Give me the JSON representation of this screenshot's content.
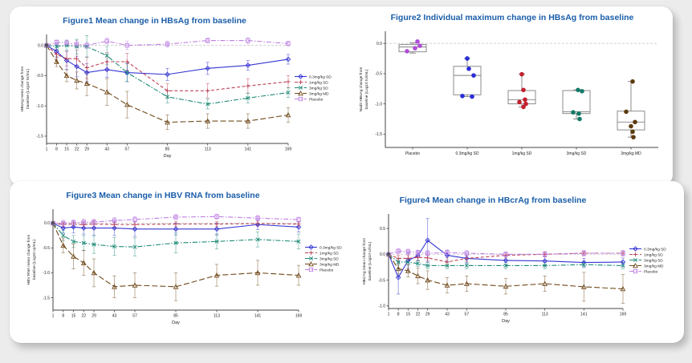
{
  "panel": {
    "background": "#ececec",
    "card_color": "#ffffff",
    "title_color": "#1b5ea9"
  },
  "chart_data": [
    {
      "id": "figure1",
      "type": "line",
      "title": "Figure1 Mean change in HBsAg from baseline",
      "xlabel": "Day",
      "ylabel": [
        "HBsAg mean change from",
        "baseline (Log10 IU/mL)"
      ],
      "x": [
        1,
        8,
        15,
        22,
        29,
        43,
        57,
        85,
        113,
        141,
        169
      ],
      "ylim": [
        -1.62,
        0.18
      ],
      "yticks": [
        0,
        -0.5,
        -1,
        -1.5
      ],
      "zero_line": true,
      "legend_position": "right",
      "series": [
        {
          "name": "0.3mg/kg SD",
          "color": "#3535d4",
          "dash": "solid",
          "marker": "diamond",
          "values": [
            0,
            -0.1,
            -0.25,
            -0.35,
            -0.45,
            -0.4,
            -0.45,
            -0.48,
            -0.38,
            -0.33,
            -0.23
          ],
          "err": [
            0.03,
            0.1,
            0.15,
            0.17,
            0.15,
            0.13,
            0.15,
            0.1,
            0.1,
            0.08,
            0.08
          ]
        },
        {
          "name": "1mg/kg SD",
          "color": "#bb4257",
          "dash": "dashed",
          "marker": "plus",
          "values": [
            0,
            -0.15,
            -0.22,
            -0.22,
            -0.37,
            -0.27,
            -0.27,
            -0.75,
            -0.75,
            -0.67,
            -0.6
          ],
          "err": [
            0.03,
            0.08,
            0.12,
            0.14,
            0.18,
            0.15,
            0.14,
            0.12,
            0.12,
            0.12,
            0.1
          ]
        },
        {
          "name": "3mg/kg SD",
          "color": "#1e8a77",
          "dash": "dashdot",
          "marker": "x",
          "values": [
            0,
            -0.02,
            0,
            -0.02,
            -0.02,
            -0.17,
            -0.45,
            -0.85,
            -0.97,
            -0.87,
            -0.78
          ],
          "err": [
            0.03,
            0.05,
            0.08,
            0.12,
            0.18,
            0.15,
            0.15,
            0.1,
            0.08,
            0.08,
            0.08
          ]
        },
        {
          "name": "3mg/kg MD",
          "color": "#70491a",
          "dash": "longdash",
          "marker": "triangle",
          "values": [
            0,
            -0.27,
            -0.5,
            -0.58,
            -0.63,
            -0.77,
            -0.98,
            -1.27,
            -1.25,
            -1.25,
            -1.15
          ],
          "err": [
            0.03,
            0.08,
            0.1,
            0.14,
            0.2,
            0.22,
            0.22,
            0.12,
            0.12,
            0.12,
            0.12
          ]
        },
        {
          "name": "Placebo",
          "color": "#bd7fe3",
          "dash": "dashdot",
          "marker": "square",
          "values": [
            0,
            0.05,
            0.04,
            0.02,
            0,
            0.07,
            0,
            0.02,
            0.08,
            0.08,
            0.03
          ],
          "err": [
            0.02,
            0.04,
            0.05,
            0.06,
            0.05,
            0.05,
            0.07,
            0.05,
            0.04,
            0.05,
            0.04
          ]
        }
      ]
    },
    {
      "id": "figure2",
      "type": "box",
      "title": "Figure2 Individual maximum change in HBsAg from baseline",
      "ylabel": [
        "Nadir HBsAg change from",
        "baseline (Log10 IU/mL)"
      ],
      "ylim": [
        -1.72,
        0.2
      ],
      "yticks": [
        0,
        -0.5,
        -1,
        -1.5
      ],
      "zero_line": true,
      "groups": [
        {
          "label": "Placebo",
          "color": "#ad4fd6",
          "points": [
            0.03,
            -0.04,
            -0.08,
            -0.13
          ],
          "offsets": [
            6,
            9,
            3,
            -7
          ],
          "box": {
            "high": 0.01,
            "q3": -0.02,
            "median": -0.06,
            "q1": -0.14,
            "low": -0.16
          }
        },
        {
          "label": "0.3mg/kg SD",
          "color": "#2b2bd8",
          "points": [
            -0.25,
            -0.42,
            -0.53,
            -0.87,
            -0.88
          ],
          "offsets": [
            0,
            2,
            8,
            -6,
            6
          ],
          "box": {
            "high": -0.25,
            "q3": -0.38,
            "median": -0.53,
            "q1": -0.85,
            "low": -0.88
          }
        },
        {
          "label": "1mg/kg SD",
          "color": "#c2202e",
          "points": [
            -0.51,
            -0.77,
            -0.93,
            -0.97,
            -1.0,
            -1.05
          ],
          "offsets": [
            0,
            2,
            4,
            -3,
            5,
            2
          ],
          "box": {
            "high": -0.51,
            "q3": -0.78,
            "median": -0.93,
            "q1": -1.0,
            "low": -1.05
          }
        },
        {
          "label": "3mg/kg SD",
          "color": "#157a68",
          "points": [
            -0.77,
            -0.79,
            -1.14,
            -1.16,
            -1.25
          ],
          "offsets": [
            2,
            7,
            -4,
            3,
            4
          ],
          "box": {
            "high": -0.77,
            "q3": -0.78,
            "median": -1.13,
            "q1": -1.16,
            "low": -1.25
          }
        },
        {
          "label": "3mg/kg MD",
          "color": "#5b3a0d",
          "points": [
            -0.63,
            -1.13,
            -1.3,
            -1.37,
            -1.46,
            -1.55
          ],
          "offsets": [
            2,
            -6,
            5,
            0,
            2,
            3
          ],
          "box": {
            "high": -0.63,
            "q3": -1.12,
            "median": -1.3,
            "q1": -1.43,
            "low": -1.55
          }
        }
      ]
    },
    {
      "id": "figure3",
      "type": "line",
      "title": "Figure3 Mean change in HBV RNA from baseline",
      "xlabel": "Day",
      "ylabel": [
        "HBV RNA mean change from",
        "baseline (Log10 cp/mL)"
      ],
      "x": [
        1,
        8,
        15,
        22,
        29,
        43,
        57,
        85,
        113,
        141,
        169
      ],
      "ylim": [
        -1.75,
        0.28
      ],
      "yticks": [
        0,
        -0.5,
        -1,
        -1.5
      ],
      "zero_line": true,
      "legend_position": "right",
      "series": [
        {
          "name": "0.3mg/kg SD",
          "color": "#3535d4",
          "dash": "solid",
          "marker": "diamond",
          "values": [
            0,
            -0.1,
            -0.08,
            -0.1,
            -0.1,
            -0.1,
            -0.12,
            -0.12,
            -0.12,
            -0.03,
            -0.08
          ],
          "err": [
            0.02,
            0.1,
            0.12,
            0.12,
            0.15,
            0.15,
            0.15,
            0.12,
            0.12,
            0.1,
            0.1
          ]
        },
        {
          "name": "1mg/kg SD",
          "color": "#bb4257",
          "dash": "dashed",
          "marker": "plus",
          "values": [
            0,
            -0.03,
            -0.02,
            -0.03,
            -0.02,
            -0.03,
            -0.03,
            -0.02,
            -0.02,
            -0.01,
            -0.02
          ],
          "err": [
            0.02,
            0.05,
            0.06,
            0.06,
            0.06,
            0.06,
            0.06,
            0.05,
            0.05,
            0.05,
            0.05
          ]
        },
        {
          "name": "3mg/kg SD",
          "color": "#1e8a77",
          "dash": "dashdot",
          "marker": "x",
          "values": [
            0,
            -0.25,
            -0.37,
            -0.4,
            -0.43,
            -0.47,
            -0.48,
            -0.4,
            -0.37,
            -0.33,
            -0.37
          ],
          "err": [
            0.02,
            0.1,
            0.12,
            0.15,
            0.18,
            0.18,
            0.18,
            0.2,
            0.15,
            0.15,
            0.15
          ]
        },
        {
          "name": "3mg/kg MD",
          "color": "#70491a",
          "dash": "longdash",
          "marker": "triangle",
          "values": [
            0,
            -0.45,
            -0.67,
            -0.8,
            -1.0,
            -1.28,
            -1.25,
            -1.28,
            -1.05,
            -1.0,
            -1.05
          ],
          "err": [
            0.02,
            0.15,
            0.25,
            0.25,
            0.28,
            0.22,
            0.25,
            0.28,
            0.22,
            0.25,
            0.2
          ]
        },
        {
          "name": "Placebo",
          "color": "#bd7fe3",
          "dash": "dashdot",
          "marker": "square",
          "values": [
            0,
            0,
            0.01,
            0.02,
            0.02,
            0.05,
            0.07,
            0.12,
            0.13,
            0.1,
            0.07
          ],
          "err": [
            0.02,
            0.06,
            0.06,
            0.06,
            0.06,
            0.06,
            0.06,
            0.05,
            0.05,
            0.05,
            0.05
          ]
        }
      ]
    },
    {
      "id": "figure4",
      "type": "line",
      "title": "Figure4 Mean change in HBcrAg from baseline",
      "xlabel": "Day",
      "ylabel": [
        "HBcrAg mean change from",
        "baseline (Log10 U/mL)"
      ],
      "x": [
        1,
        8,
        15,
        22,
        29,
        43,
        57,
        85,
        113,
        141,
        169
      ],
      "ylim": [
        -1.05,
        0.78
      ],
      "yticks": [
        0.5,
        0,
        -0.5,
        -1
      ],
      "zero_line": true,
      "legend_position": "right",
      "series": [
        {
          "name": "0.3mg/kg SD",
          "color": "#3535d4",
          "dash": "solid",
          "marker": "diamond",
          "values": [
            0,
            -0.45,
            -0.12,
            -0.03,
            0.27,
            -0.02,
            -0.08,
            -0.12,
            -0.13,
            -0.16,
            -0.15
          ],
          "err": [
            0.02,
            0.32,
            0.15,
            0.1,
            0.42,
            0.1,
            0.1,
            0.08,
            0.08,
            0.08,
            0.08
          ]
        },
        {
          "name": "1mg/kg SD",
          "color": "#bb4257",
          "dash": "dashed",
          "marker": "plus",
          "values": [
            0,
            -0.08,
            -0.08,
            -0.06,
            -0.07,
            -0.15,
            -0.08,
            -0.02,
            0,
            0.02,
            0.02
          ],
          "err": [
            0.02,
            0.06,
            0.06,
            0.06,
            0.06,
            0.08,
            0.06,
            0.05,
            0.05,
            0.05,
            0.05
          ]
        },
        {
          "name": "3mg/kg SD",
          "color": "#1e8a77",
          "dash": "dashdot",
          "marker": "x",
          "values": [
            0,
            -0.15,
            -0.15,
            -0.18,
            -0.22,
            -0.22,
            -0.22,
            -0.22,
            -0.22,
            -0.2,
            -0.22
          ],
          "err": [
            0.02,
            0.06,
            0.06,
            0.06,
            0.06,
            0.06,
            0.06,
            0.06,
            0.06,
            0.06,
            0.06
          ]
        },
        {
          "name": "3mg/kg MD",
          "color": "#70491a",
          "dash": "longdash",
          "marker": "triangle",
          "values": [
            0,
            -0.28,
            -0.32,
            -0.42,
            -0.5,
            -0.6,
            -0.57,
            -0.62,
            -0.57,
            -0.63,
            -0.67
          ],
          "err": [
            0.02,
            0.1,
            0.12,
            0.15,
            0.18,
            0.15,
            0.15,
            0.15,
            0.15,
            0.28,
            0.28
          ]
        },
        {
          "name": "Placebo",
          "color": "#bd7fe3",
          "dash": "dashdot",
          "marker": "square",
          "values": [
            0,
            0.06,
            0.05,
            0.03,
            0.02,
            0.03,
            0.02,
            0,
            0,
            0.02,
            0.02
          ],
          "err": [
            0.02,
            0.05,
            0.05,
            0.05,
            0.05,
            0.05,
            0.05,
            0.05,
            0.05,
            0.05,
            0.05
          ]
        }
      ]
    }
  ]
}
